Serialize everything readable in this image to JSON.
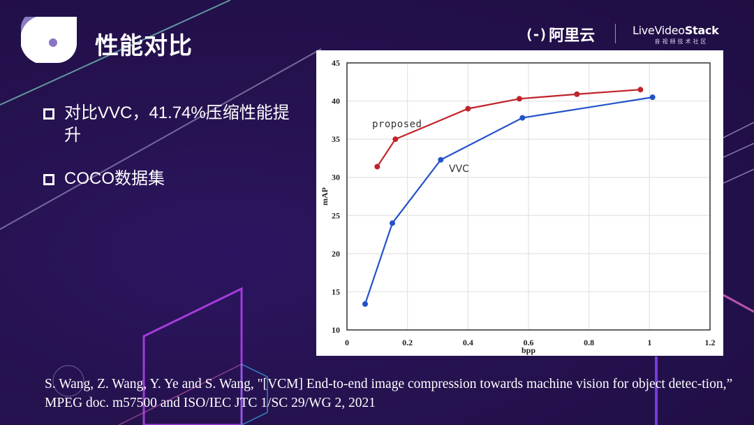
{
  "header": {
    "title": "性能对比",
    "brand_aliyun_mark": "(-)",
    "brand_aliyun_text": "阿里云",
    "brand_lvs_prefix": "LiveVideo",
    "brand_lvs_bold": "Stack",
    "brand_lvs_sub": "音视频技术社区"
  },
  "bullets": [
    {
      "text": "对比VVC，41.74%压缩性能提升"
    },
    {
      "text": "COCO数据集"
    }
  ],
  "citation": "S. Wang, Z. Wang, Y. Ye and S. Wang, \"[VCM] End-to-end image compression towards machine vision for object detec-tion,” MPEG doc. m57500 and ISO/IEC JTC 1/SC 29/WG 2, 2021",
  "colors": {
    "background": "#25124f",
    "proposed": "#c0232b",
    "vvc": "#2352c8",
    "grid": "#e2e2e2"
  },
  "chart_data": {
    "type": "line",
    "title": "",
    "xlabel": "bpp",
    "ylabel": "mAP",
    "xlim": [
      0,
      1.2
    ],
    "ylim": [
      10,
      45
    ],
    "xticks": [
      "0",
      "0.2",
      "0.4",
      "0.6",
      "0.8",
      "1",
      "1.2"
    ],
    "yticks": [
      "10",
      "15",
      "20",
      "25",
      "30",
      "35",
      "40",
      "45"
    ],
    "grid": true,
    "legend": "inline labels",
    "series": [
      {
        "name": "proposed",
        "color": "#c0232b",
        "x": [
          0.1,
          0.16,
          0.4,
          0.57,
          0.76,
          0.97
        ],
        "y": [
          31.4,
          35.0,
          39.0,
          40.3,
          40.9,
          41.5
        ]
      },
      {
        "name": "VVC",
        "color": "#2352c8",
        "x": [
          0.06,
          0.15,
          0.31,
          0.58,
          1.01
        ],
        "y": [
          13.4,
          24.0,
          32.3,
          37.8,
          40.5
        ]
      }
    ]
  }
}
